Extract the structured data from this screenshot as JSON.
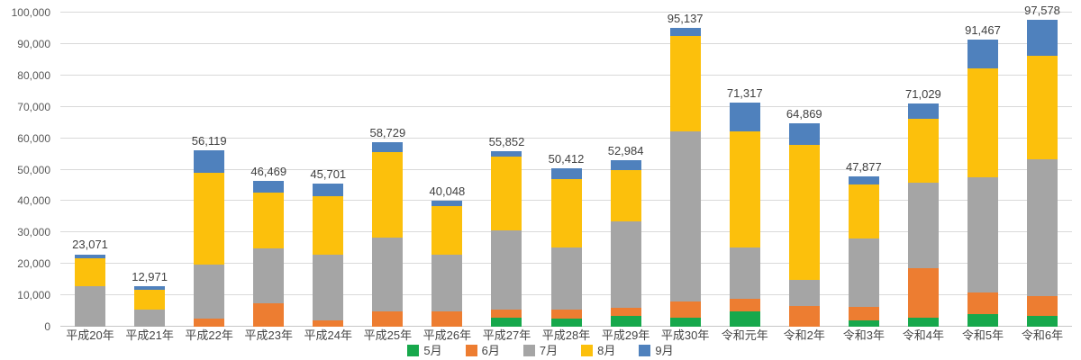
{
  "chart_data": {
    "type": "bar",
    "stacked": true,
    "grid": true,
    "legend_position": "bottom",
    "ylim": [
      0,
      100000
    ],
    "ytick_interval": 10000,
    "ytick_labels": [
      "0",
      "10,000",
      "20,000",
      "30,000",
      "40,000",
      "50,000",
      "60,000",
      "70,000",
      "80,000",
      "90,000",
      "100,000"
    ],
    "categories": [
      "平成20年",
      "平成21年",
      "平成22年",
      "平成23年",
      "平成24年",
      "平成25年",
      "平成26年",
      "平成27年",
      "平成28年",
      "平成29年",
      "平成30年",
      "令和元年",
      "令和2年",
      "令和3年",
      "令和4年",
      "令和5年",
      "令和6年"
    ],
    "series": [
      {
        "name": "5月",
        "color": "#17A84C",
        "values": [
          0,
          0,
          0,
          0,
          0,
          0,
          0,
          2900,
          2680,
          3520,
          2770,
          4770,
          0,
          1915,
          2860,
          4000,
          3340
        ]
      },
      {
        "name": "6月",
        "color": "#ED7D31",
        "values": [
          0,
          0,
          2570,
          7340,
          1900,
          4770,
          4770,
          2600,
          2760,
          2500,
          5230,
          4000,
          6660,
          4285,
          15910,
          6860,
          6370
        ]
      },
      {
        "name": "7月",
        "color": "#A5A5A5",
        "values": [
          12900,
          5400,
          17340,
          17600,
          21160,
          23520,
          18290,
          25160,
          19790,
          27500,
          54090,
          16370,
          8110,
          21890,
          27140,
          36660,
          43520
        ]
      },
      {
        "name": "8月",
        "color": "#FCC00C",
        "values": [
          8900,
          6230,
          29040,
          17630,
          18370,
          27330,
          15210,
          23530,
          21820,
          16390,
          30480,
          37150,
          43230,
          17340,
          20180,
          34760,
          33050
        ]
      },
      {
        "name": "9月",
        "color": "#4F81BD",
        "values": [
          1271,
          1341,
          7169,
          3899,
          4271,
          3109,
          1778,
          1662,
          3362,
          3074,
          2567,
          9027,
          6869,
          2447,
          4939,
          9187,
          11298
        ]
      }
    ],
    "total_labels": [
      "23,071",
      "12,971",
      "56,119",
      "46,469",
      "45,701",
      "58,729",
      "40,048",
      "55,852",
      "50,412",
      "52,984",
      "95,137",
      "71,317",
      "64,869",
      "47,877",
      "71,029",
      "91,467",
      "97,578"
    ],
    "colors": {
      "gridline": "#D9D9D9",
      "axis_text": "#595959",
      "data_label_text": "#404040"
    }
  }
}
